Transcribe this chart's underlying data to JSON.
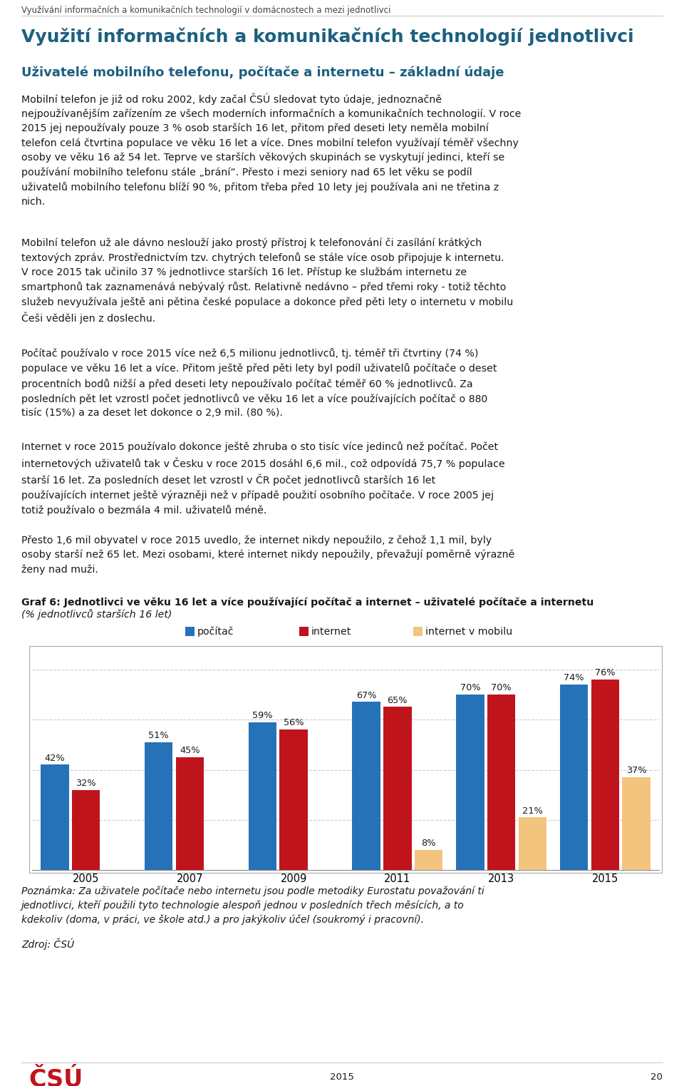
{
  "page_title": "Využívání informačních a komunikačních technologií v domácnostech a mezi jednotlivci",
  "main_title": "Využití informačních a komunikačních technologií jednotlivci",
  "subtitle": "Uživatelé mobilního telefonu, počítače a internetu – základní údaje",
  "body_paragraphs": [
    "Mobilní telefon je již od roku 2002, kdy začal ČSÚ sledovat tyto údaje, jednoznačně nejpoužívanějším zařízením ze všech moderních informačních a komunikačních technologií. V roce 2015 jej nepoužívaly pouze 3 % osob starších 16 let, přitom před deseti lety neměla mobilní telefon celá čtvrtina populace ve věku 16 let a více. Dnes mobilní telefon využívají téměř všechny osoby ve věku 16 až 54 let. Teprve ve starších věkových skupinách se vyskytují jedinci, kteří se používání mobilního telefonu stále „brání“. Přesto i mezi seniory nad 65 let věku se podíl uživatelů mobilního telefonu blíží 90 %, přitom třeba před 10 lety jej používala ani ne třetina z nich.",
    "Mobilní telefon už ale dávno neslouží jako prostý přístroj k telefonování či zasílání krátkých textových zpráv. Prostřednictvím tzv. chytrých telefonů se stále více osob připojuje k internetu. V roce 2015 tak učinilo 37 % jednotlivce starších 16 let. Přístup ke službám internetu ze smartphonů tak zaznamenává nebývalý růst. Relativně nedávno – před třemi roky - totiž těchto služeb nevyužívala ještě ani pětina české populace a dokonce před pěti lety o internetu v mobilu Češi věděli jen z doslechu.",
    "Počítač používalo v roce 2015 více než 6,5 milionu jednotlivců, tj. téměř tři čtvrtiny (74 %) populace ve věku 16 let a více. Přitom ještě před pěti lety byl podíl uživatelů počítače o deset procentních bodů nižší a před deseti lety nepoužívalo počítač téměř 60 % jednotlivců. Za posledních pět let vzrostl počet jednotlivců ve věku 16 let a více používajících počítač o 880 tisíc (15%) a za deset let dokonce o 2,9 mil. (80 %).",
    "Internet v roce 2015 používalo dokonce ještě zhruba o sto tisíc více jedinců než počítač. Počet internetových uživatelů tak v Česku v roce 2015 dosáhl 6,6 mil., což odpovídá 75,7 % populace starší 16 let. Za posledních deset let vzrostl v ČR počet jednotlivců starších 16 let používajících internet ještě výrazněji než v případě použití osobního počítače. V roce 2005 jej totiž používalo o bezmála 4 mil. uživatelů méně.",
    "Přesto 1,6 mil obyvatel v roce 2015 uvedlo, že internet nikdy nepoužilo, z čehož 1,1 mil, byly osoby starší než 65 let. Mezi osobami, které internet nikdy nepoužily, převažují poměrně výrazně ženy nad muži."
  ],
  "graph_title_bold": "Graf 6: Jednotlivci ve věku 16 let a více používající počítač a internet – uživatelé počítače a internetu",
  "graph_title_italic": "(% jednotlivců starších 16 let)",
  "legend_labels": [
    "počítač",
    "internet",
    "internet v mobilu"
  ],
  "legend_colors": [
    "#2672b8",
    "#c0141c",
    "#f2c47e"
  ],
  "years": [
    2005,
    2007,
    2009,
    2011,
    2013,
    2015
  ],
  "pocitac": [
    42,
    51,
    59,
    67,
    70,
    74
  ],
  "internet": [
    32,
    45,
    56,
    65,
    70,
    76
  ],
  "internet_mobil": [
    null,
    null,
    null,
    8,
    21,
    37
  ],
  "bar_color_blue": "#2672b8",
  "bar_color_red": "#c0141c",
  "bar_color_orange": "#f2c47e",
  "bar_width": 0.27,
  "note_text": "Poznámka: Za uživatele počítače nebo internetu jsou podle metodiky Eurostatu považování ti jednotlivci, kteří použili tyto technologie alespoň jednou v posledních třech měsících, a to kdekoliv (doma, v práci, ve škole atd.) a pro jakýkoliv účel (soukromý i pracovní).",
  "source_text": "Zdroj: ČSÚ",
  "footer_year": "2015",
  "footer_page": "20",
  "header_text": "Využívání informačních a komunikačních technologií v domácnostech a mezi jednotlivci",
  "csu_color": "#c0141c"
}
